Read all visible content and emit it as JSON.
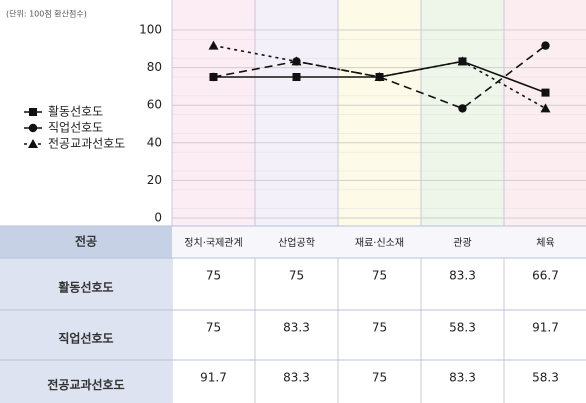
{
  "chart_data": {
    "type": "line",
    "note": "(단위: 100점 환산점수)",
    "categories": [
      "정치·국제관계",
      "산업공학",
      "재료·신소재",
      "관광",
      "체육"
    ],
    "series": [
      {
        "name": "활동선호도",
        "color": "#111111",
        "marker": "square",
        "dash": "solid",
        "values": [
          75,
          75,
          75,
          83.3,
          66.7
        ]
      },
      {
        "name": "직업선호도",
        "color": "#111111",
        "marker": "circle",
        "dash": "dashed",
        "values": [
          75,
          83.3,
          75,
          58.3,
          91.7
        ]
      },
      {
        "name": "전공교과선호도",
        "color": "#111111",
        "marker": "triangle",
        "dash": "dotted",
        "values": [
          91.7,
          83.3,
          75,
          83.3,
          58.3
        ]
      }
    ],
    "ylim": [
      0,
      100
    ],
    "yticks": [
      0,
      20,
      40,
      60,
      80,
      100
    ],
    "grid": true
  },
  "table": {
    "corner": "전공"
  }
}
